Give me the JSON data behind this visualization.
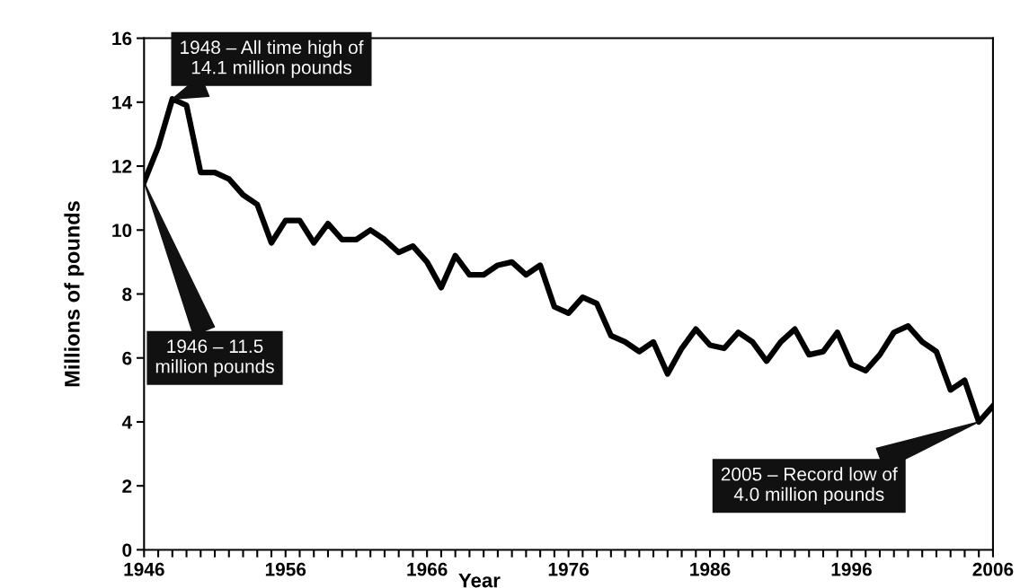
{
  "chart_data": {
    "type": "line",
    "xlabel": "Year",
    "ylabel": "Millions of pounds",
    "x": [
      1946,
      1947,
      1948,
      1949,
      1950,
      1951,
      1952,
      1953,
      1954,
      1955,
      1956,
      1957,
      1958,
      1959,
      1960,
      1961,
      1962,
      1963,
      1964,
      1965,
      1966,
      1967,
      1968,
      1969,
      1970,
      1971,
      1972,
      1973,
      1974,
      1975,
      1976,
      1977,
      1978,
      1979,
      1980,
      1981,
      1982,
      1983,
      1984,
      1985,
      1986,
      1987,
      1988,
      1989,
      1990,
      1991,
      1992,
      1993,
      1994,
      1995,
      1996,
      1997,
      1998,
      1999,
      2000,
      2001,
      2002,
      2003,
      2004,
      2005,
      2006
    ],
    "series": [
      {
        "color": "#000000",
        "values": [
          11.5,
          12.6,
          14.1,
          13.9,
          11.8,
          11.8,
          11.6,
          11.1,
          10.8,
          9.6,
          10.3,
          10.3,
          9.6,
          10.2,
          9.7,
          9.7,
          10.0,
          9.7,
          9.3,
          9.5,
          9.0,
          8.2,
          9.2,
          8.6,
          8.6,
          8.9,
          9.0,
          8.6,
          8.9,
          7.6,
          7.4,
          7.9,
          7.7,
          6.7,
          6.5,
          6.2,
          6.5,
          5.5,
          6.3,
          6.9,
          6.4,
          6.3,
          6.8,
          6.5,
          5.9,
          6.5,
          6.9,
          6.1,
          6.2,
          6.8,
          5.8,
          5.6,
          6.1,
          6.8,
          7.0,
          6.5,
          6.2,
          5.0,
          5.3,
          4.0,
          4.5
        ]
      }
    ],
    "xlim": [
      1946,
      2006
    ],
    "xticks": [
      1946,
      {
        "value": 1947,
        "label": null
      },
      {
        "value": 1948,
        "label": null
      },
      {
        "value": 1949,
        "label": null
      },
      {
        "value": 1950,
        "label": null
      },
      {
        "value": 1951,
        "label": null
      },
      {
        "value": 1952,
        "label": null
      },
      {
        "value": 1953,
        "label": null
      },
      {
        "value": 1954,
        "label": null
      },
      {
        "value": 1955,
        "label": null
      },
      1956,
      {
        "value": 1957,
        "label": null
      },
      {
        "value": 1958,
        "label": null
      },
      {
        "value": 1959,
        "label": null
      },
      {
        "value": 1960,
        "label": null
      },
      {
        "value": 1961,
        "label": null
      },
      {
        "value": 1962,
        "label": null
      },
      {
        "value": 1963,
        "label": null
      },
      {
        "value": 1964,
        "label": null
      },
      {
        "value": 1965,
        "label": null
      },
      1966,
      {
        "value": 1967,
        "label": null
      },
      {
        "value": 1968,
        "label": null
      },
      {
        "value": 1969,
        "label": null
      },
      {
        "value": 1970,
        "label": null
      },
      {
        "value": 1971,
        "label": null
      },
      {
        "value": 1972,
        "label": null
      },
      {
        "value": 1973,
        "label": null
      },
      {
        "value": 1974,
        "label": null
      },
      {
        "value": 1975,
        "label": null
      },
      1976,
      {
        "value": 1977,
        "label": null
      },
      {
        "value": 1978,
        "label": null
      },
      {
        "value": 1979,
        "label": null
      },
      {
        "value": 1980,
        "label": null
      },
      {
        "value": 1981,
        "label": null
      },
      {
        "value": 1982,
        "label": null
      },
      {
        "value": 1983,
        "label": null
      },
      {
        "value": 1984,
        "label": null
      },
      {
        "value": 1985,
        "label": null
      },
      1986,
      {
        "value": 1987,
        "label": null
      },
      {
        "value": 1988,
        "label": null
      },
      {
        "value": 1989,
        "label": null
      },
      {
        "value": 1990,
        "label": null
      },
      {
        "value": 1991,
        "label": null
      },
      {
        "value": 1992,
        "label": null
      },
      {
        "value": 1993,
        "label": null
      },
      {
        "value": 1994,
        "label": null
      },
      {
        "value": 1995,
        "label": null
      },
      1996,
      {
        "value": 1997,
        "label": null
      },
      {
        "value": 1998,
        "label": null
      },
      {
        "value": 1999,
        "label": null
      },
      {
        "value": 2000,
        "label": null
      },
      {
        "value": 2001,
        "label": null
      },
      {
        "value": 2002,
        "label": null
      },
      {
        "value": 2003,
        "label": null
      },
      {
        "value": 2004,
        "label": null
      },
      {
        "value": 2005,
        "label": null
      },
      2006
    ],
    "ylim": [
      0,
      16
    ],
    "yticks": [
      0,
      2,
      4,
      6,
      8,
      10,
      12,
      14,
      16
    ],
    "grid": false,
    "marker": "none",
    "line_style": "solid",
    "annotations": [
      {
        "text": "1948 – All time high of\n14.1 million pounds",
        "x": 1948,
        "y": 14.1
      },
      {
        "text": "1946 – 11.5\nmillion pounds",
        "x": 1946,
        "y": 11.5
      },
      {
        "text": "2005 – Record low of\n4.0 million pounds",
        "x": 2005,
        "y": 4.0
      }
    ]
  }
}
